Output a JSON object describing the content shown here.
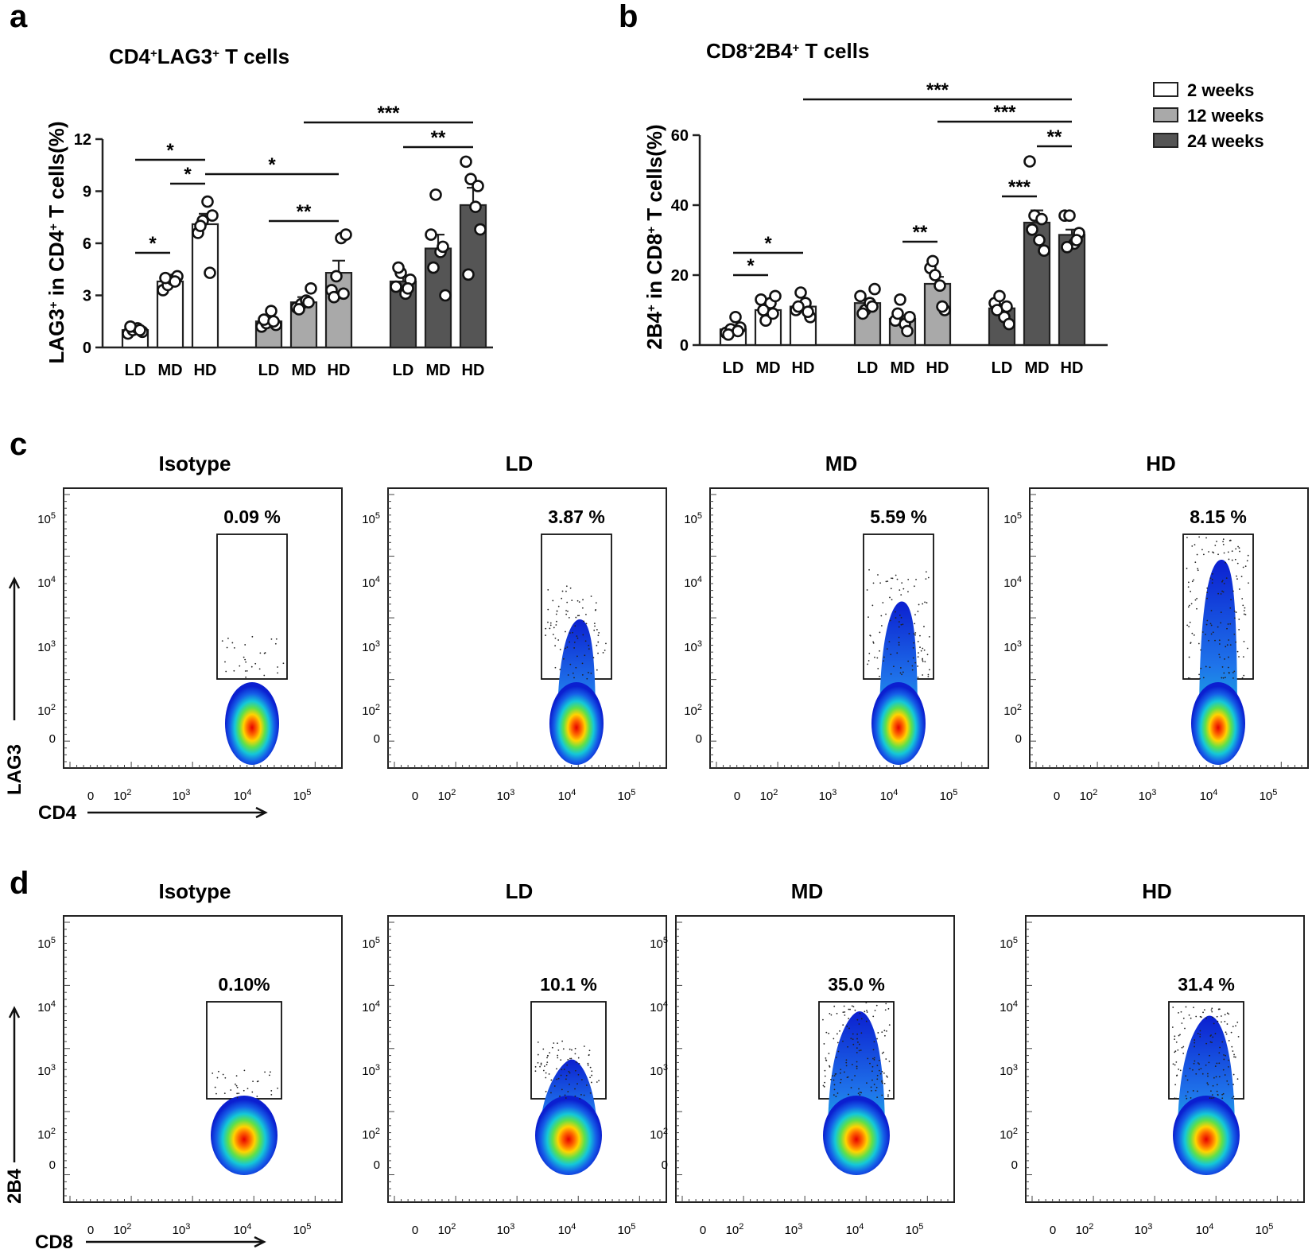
{
  "panel_letters": {
    "a": "a",
    "b": "b",
    "c": "c",
    "d": "d"
  },
  "legend": {
    "items": [
      {
        "label": "2 weeks",
        "color": "#ffffff"
      },
      {
        "label": "12 weeks",
        "color": "#a9a9a9"
      },
      {
        "label": "24 weeks",
        "color": "#555555"
      }
    ]
  },
  "chart_data": [
    {
      "id": "a",
      "type": "bar",
      "title_parts": [
        "CD4",
        "+",
        "LAG3",
        "+",
        " T cells"
      ],
      "ylabel_parts": [
        "LAG3",
        "+",
        " in CD4",
        "+",
        " T cells(%)"
      ],
      "ylim": [
        0,
        12
      ],
      "yticks": [
        "0",
        "3",
        "6",
        "9",
        "12"
      ],
      "groups": [
        "2 weeks",
        "12 weeks",
        "24 weeks"
      ],
      "categories": [
        "LD",
        "MD",
        "HD"
      ],
      "series": [
        {
          "name": "2 weeks",
          "values": [
            1.0,
            3.8,
            7.1
          ],
          "sem": [
            0.1,
            0.3,
            0.6
          ],
          "points": [
            [
              0.8,
              1.0,
              1.1,
              0.9,
              1.2,
              1.0
            ],
            [
              3.3,
              3.6,
              3.9,
              4.1,
              4.0,
              3.8
            ],
            [
              6.6,
              7.3,
              8.4,
              7.6,
              7.0,
              4.3
            ]
          ]
        },
        {
          "name": "12 weeks",
          "values": [
            1.5,
            2.6,
            4.3
          ],
          "sem": [
            0.2,
            0.3,
            0.7
          ],
          "points": [
            [
              1.2,
              1.4,
              2.1,
              1.3,
              1.6,
              1.5
            ],
            [
              2.3,
              2.5,
              2.7,
              3.4,
              2.2,
              2.6
            ],
            [
              3.3,
              4.1,
              6.3,
              6.5,
              2.9,
              3.1
            ]
          ]
        },
        {
          "name": "24 weeks",
          "values": [
            3.8,
            5.7,
            8.2
          ],
          "sem": [
            0.3,
            0.8,
            1.0
          ],
          "points": [
            [
              3.5,
              4.3,
              3.1,
              3.9,
              4.6,
              3.4
            ],
            [
              6.5,
              8.8,
              5.5,
              3.0,
              4.6,
              5.8
            ],
            [
              10.7,
              9.7,
              8.1,
              6.8,
              4.2,
              9.3
            ]
          ]
        }
      ],
      "significance": [
        {
          "from": [
            0,
            0
          ],
          "to": [
            0,
            1
          ],
          "label": "*"
        },
        {
          "from": [
            0,
            0
          ],
          "to": [
            0,
            2
          ],
          "label": "*"
        },
        {
          "from": [
            0,
            1
          ],
          "to": [
            0,
            2
          ],
          "label": "*"
        },
        {
          "from": [
            0,
            2
          ],
          "to": [
            1,
            2
          ],
          "label": "*"
        },
        {
          "from": [
            1,
            0
          ],
          "to": [
            1,
            2
          ],
          "label": "**"
        },
        {
          "from": [
            1,
            1
          ],
          "to": [
            2,
            2
          ],
          "label": "***"
        },
        {
          "from": [
            2,
            0
          ],
          "to": [
            2,
            2
          ],
          "label": "**"
        }
      ]
    },
    {
      "id": "b",
      "type": "bar",
      "title_parts": [
        "CD8",
        "+",
        "2B4",
        "+",
        " T cells"
      ],
      "ylabel_parts": [
        "2B4",
        "+",
        " in CD8",
        "+",
        " T cells(%)"
      ],
      "ylim": [
        0,
        60
      ],
      "yticks": [
        "0",
        "20",
        "40",
        "60"
      ],
      "groups": [
        "2 weeks",
        "12 weeks",
        "24 weeks"
      ],
      "categories": [
        "LD",
        "MD",
        "HD"
      ],
      "series": [
        {
          "name": "2 weeks",
          "values": [
            4.5,
            10.0,
            11.0
          ],
          "sem": [
            0.6,
            1.5,
            1.2
          ],
          "points": [
            [
              3.5,
              4.5,
              8.0,
              5.0,
              3.0,
              4.0
            ],
            [
              13.0,
              7.0,
              12.0,
              14.0,
              10.0,
              9.0
            ],
            [
              10.0,
              15.0,
              12.0,
              8.0,
              11.0,
              9.5
            ]
          ]
        },
        {
          "name": "12 weeks",
          "values": [
            12.0,
            7.5,
            17.5
          ],
          "sem": [
            1.2,
            0.9,
            2.0
          ],
          "points": [
            [
              14.0,
              10.0,
              12.0,
              16.0,
              9.0,
              11.0
            ],
            [
              7.0,
              13.0,
              6.0,
              8.0,
              9.0,
              4.0
            ],
            [
              22.0,
              20.0,
              17.0,
              10.0,
              24.0,
              11.0
            ]
          ]
        },
        {
          "name": "24 weeks",
          "values": [
            10.5,
            35.0,
            31.5
          ],
          "sem": [
            1.2,
            3.5,
            1.5
          ],
          "points": [
            [
              12.0,
              14.0,
              8.0,
              6.0,
              10.0,
              11.0
            ],
            [
              52.5,
              37.0,
              30.0,
              27.0,
              33.0,
              36.0
            ],
            [
              37.0,
              37.0,
              29.0,
              32.0,
              28.0,
              30.0
            ]
          ]
        }
      ],
      "significance": [
        {
          "from": [
            0,
            0
          ],
          "to": [
            0,
            1
          ],
          "label": "*"
        },
        {
          "from": [
            0,
            0
          ],
          "to": [
            0,
            2
          ],
          "label": "*"
        },
        {
          "from": [
            1,
            1
          ],
          "to": [
            1,
            2
          ],
          "label": "**"
        },
        {
          "from": [
            2,
            0
          ],
          "to": [
            2,
            1
          ],
          "label": "***"
        },
        {
          "from": [
            2,
            1
          ],
          "to": [
            2,
            2
          ],
          "label": "**"
        },
        {
          "from": [
            1,
            2
          ],
          "to": [
            2,
            2
          ],
          "label": "***"
        },
        {
          "from": [
            0,
            2
          ],
          "to": [
            2,
            2
          ],
          "label": "***"
        }
      ]
    }
  ],
  "flow_c": {
    "y_axis_label": "LAG3",
    "x_axis_label": "CD4",
    "y_ticks": [
      "10",
      "10",
      "10",
      "10",
      "0"
    ],
    "y_tick_exps": [
      "5",
      "4",
      "3",
      "2",
      ""
    ],
    "x_ticks": [
      "0",
      "10",
      "10",
      "10",
      "10"
    ],
    "x_tick_exps": [
      "",
      "2",
      "3",
      "4",
      "5"
    ],
    "plots": [
      {
        "title": "Isotype",
        "percent": "0.09 %",
        "intensity": 0.0
      },
      {
        "title": "LD",
        "percent": "3.87 %",
        "intensity": 0.5
      },
      {
        "title": "MD",
        "percent": "5.59 %",
        "intensity": 0.65
      },
      {
        "title": "HD",
        "percent": "8.15 %",
        "intensity": 1.0
      }
    ]
  },
  "flow_d": {
    "y_axis_label": "2B4",
    "x_axis_label": "CD8",
    "y_ticks": [
      "10",
      "10",
      "10",
      "10",
      "0"
    ],
    "y_tick_exps": [
      "5",
      "4",
      "3",
      "2",
      ""
    ],
    "x_ticks": [
      "0",
      "10",
      "10",
      "10",
      "10"
    ],
    "x_tick_exps": [
      "",
      "2",
      "3",
      "4",
      "5"
    ],
    "plots": [
      {
        "title": "Isotype",
        "percent": "0.10%",
        "intensity": 0.0
      },
      {
        "title": "LD",
        "percent": "10.1 %",
        "intensity": 0.45
      },
      {
        "title": "MD",
        "percent": "35.0 %",
        "intensity": 1.0
      },
      {
        "title": "HD",
        "percent": "31.4 %",
        "intensity": 0.95
      }
    ]
  }
}
